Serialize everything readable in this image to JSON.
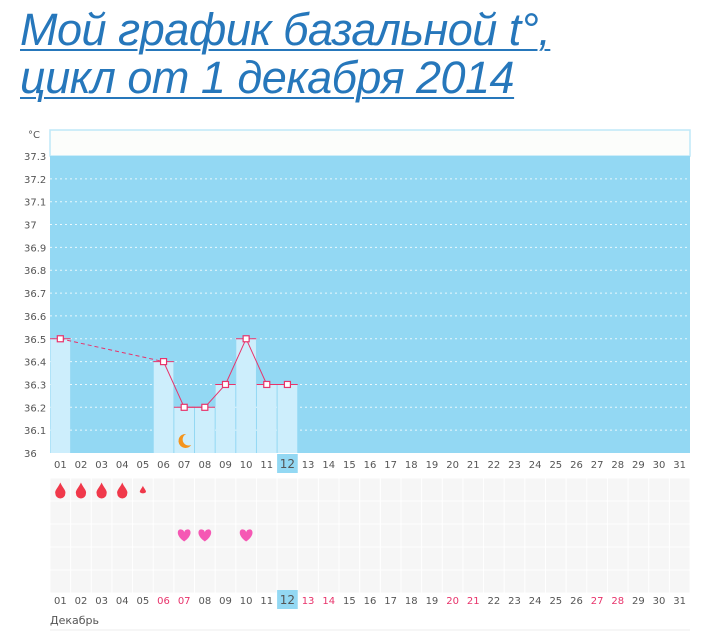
{
  "title": {
    "line1": "Мой график базальной t°,",
    "line2": "цикл от 1 декабря 2014"
  },
  "chart_data": {
    "type": "line",
    "unit_label": "°C",
    "ylim": [
      36,
      37.3
    ],
    "y_ticks": [
      "36",
      "36.1",
      "36.2",
      "36.3",
      "36.4",
      "36.5",
      "36.6",
      "36.7",
      "36.8",
      "36.9",
      "37",
      "37.1",
      "37.2",
      "37.3"
    ],
    "x_ticks": [
      "01",
      "02",
      "03",
      "04",
      "05",
      "06",
      "07",
      "08",
      "09",
      "10",
      "11",
      "12",
      "13",
      "14",
      "15",
      "16",
      "17",
      "18",
      "19",
      "20",
      "21",
      "22",
      "23",
      "24",
      "25",
      "26",
      "27",
      "28",
      "29",
      "30",
      "31"
    ],
    "highlighted_day": "12",
    "weekend_days": [
      "06",
      "07",
      "13",
      "14",
      "20",
      "21",
      "27",
      "28"
    ],
    "month_label": "Декабрь",
    "grid": true,
    "series": [
      {
        "x": [
          "01",
          "06",
          "07",
          "08",
          "09",
          "10",
          "11",
          "12"
        ],
        "values": [
          36.5,
          36.4,
          36.2,
          36.2,
          36.3,
          36.5,
          36.3,
          36.3
        ],
        "dashed_gap": [
          "01",
          "06"
        ]
      }
    ],
    "markers": {
      "moon": [
        "07"
      ],
      "menstruation_drop": [
        "01",
        "02",
        "03",
        "04",
        "05"
      ],
      "small_drop": [
        "05"
      ],
      "heart": [
        "07",
        "08",
        "10"
      ]
    },
    "colors": {
      "plot_bg": "#93d8f3",
      "bar": "#cdeefc",
      "line": "#e8336b",
      "drop": "#f0384a",
      "heart": "#f558b4",
      "moon": "#f4941c",
      "title": "#2677bb"
    }
  }
}
